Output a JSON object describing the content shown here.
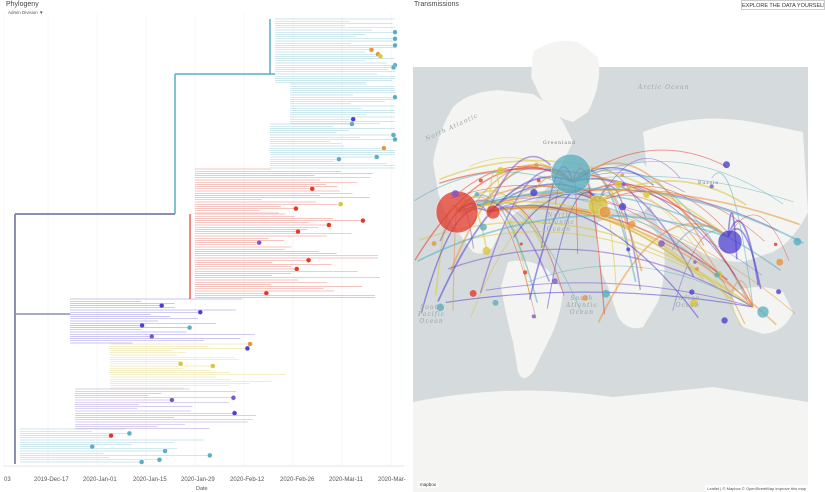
{
  "phylogeny": {
    "title": "Phylogeny",
    "color_by": "Admin Division",
    "x_axis_label": "Date",
    "tick_labels": [
      "03",
      "2019-Dec-17",
      "2020-Jan-01",
      "2020-Jan-15",
      "2020-Jan-29",
      "2020-Feb-12",
      "2020-Feb-26",
      "2020-Mar-11",
      "2020-Mar-"
    ]
  },
  "transmissions": {
    "title": "Transmissions",
    "explore_button": "EXPLORE THE DATA YOURSELF",
    "ocean_labels": {
      "arctic": "Arctic Ocean",
      "north_atlantic": "North\nAtlantic\nOcean",
      "south_pacific": "South\nPacific\nOcean",
      "south_atlantic": "South\nAtlantic\nOcean",
      "indian": "Indian\nOcean"
    },
    "country_labels": {
      "greenland": "Greenland",
      "russia": "Russia"
    },
    "attribution": "Leaflet | © Mapbox © OpenStreetMap Improve this map",
    "mapbox_logo": "mapbox"
  },
  "colors": {
    "blue_purple": "#4f3fd1",
    "purple": "#7b57c9",
    "teal": "#5aaec0",
    "yellow": "#d9c63a",
    "orange": "#e8953a",
    "red": "#e2392b",
    "branch": "#8a8fb0",
    "land": "#f4f4f2",
    "ocean": "#d5dadc"
  }
}
